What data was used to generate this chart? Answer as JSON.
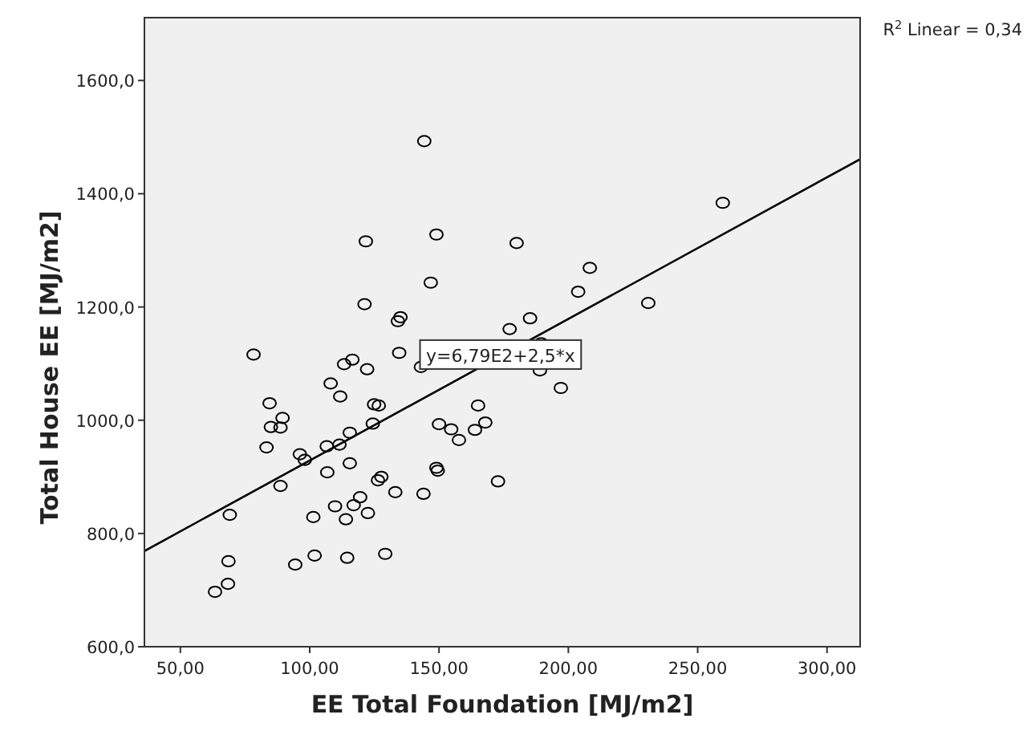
{
  "chart_data": {
    "type": "scatter",
    "xlabel": "EE Total Foundation [MJ/m2]",
    "ylabel": "Total House EE [MJ/m2]",
    "xlim": [
      36.1,
      312.8
    ],
    "ylim": [
      600,
      1711
    ],
    "xticks": [
      {
        "value": 50,
        "label": "50,00"
      },
      {
        "value": 100,
        "label": "100,00"
      },
      {
        "value": 150,
        "label": "150,00"
      },
      {
        "value": 200,
        "label": "200,00"
      },
      {
        "value": 250,
        "label": "250,00"
      },
      {
        "value": 300,
        "label": "300,00"
      }
    ],
    "yticks": [
      {
        "value": 600,
        "label": "600,0"
      },
      {
        "value": 800,
        "label": "800,0"
      },
      {
        "value": 1000,
        "label": "1000,0"
      },
      {
        "value": 1200,
        "label": "1200,0"
      },
      {
        "value": 1400,
        "label": "1400,0"
      },
      {
        "value": 1600,
        "label": "1600,0"
      }
    ],
    "marker": "circle",
    "grid": false,
    "annotations": [
      "R$^{2}$ Linear = 0,34",
      {
        "text": "y=6,79E2+2,5*x",
        "x": 173.8,
        "y": 1116
      }
    ],
    "series": [
      {
        "color": "#000000",
        "x": [
          144.3,
          149.0,
          121.7,
          180.0,
          259.7,
          208.3,
          146.8,
          203.8,
          121.2,
          230.9,
          135.1,
          134.1,
          185.2,
          177.3,
          78.3,
          134.6,
          116.5,
          113.3,
          122.2,
          143.0,
          189.5,
          189.0,
          197.1,
          108.1,
          111.8,
          84.5,
          124.9,
          126.7,
          89.5,
          85.0,
          88.7,
          83.3,
          124.4,
          115.5,
          150.0,
          154.7,
          165.1,
          167.9,
          163.9,
          157.7,
          106.6,
          111.5,
          96.2,
          98.1,
          115.5,
          106.8,
          149.0,
          149.5,
          88.7,
          127.7,
          126.4,
          133.1,
          144.0,
          172.8,
          119.5,
          109.8,
          117.0,
          122.5,
          114.0,
          101.4,
          69.1,
          68.6,
          68.4,
          63.4,
          94.4,
          101.9,
          114.5,
          129.2
        ],
        "values": [
          1493,
          1328,
          1316,
          1313,
          1384,
          1269,
          1243,
          1227,
          1205,
          1207,
          1182,
          1175,
          1180,
          1161,
          1116,
          1119,
          1107,
          1099,
          1090,
          1094,
          1136,
          1088,
          1057,
          1065,
          1042,
          1030,
          1028,
          1026,
          1004,
          988,
          987,
          952,
          994,
          978,
          993,
          984,
          1026,
          996,
          983,
          965,
          954,
          957,
          940,
          930,
          924,
          908,
          916,
          911,
          884,
          900,
          894,
          873,
          870,
          892,
          864,
          848,
          850,
          836,
          825,
          829,
          833,
          751,
          711,
          697,
          745,
          761,
          757,
          764
        ]
      },
      {
        "type": "line",
        "color": "#000000",
        "marker": "none",
        "x": [
          36.1,
          312.8
        ],
        "values": [
          769,
          1461
        ]
      }
    ]
  }
}
